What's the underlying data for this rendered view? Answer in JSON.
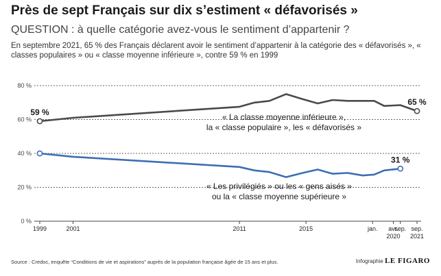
{
  "header": {
    "title": "Près de sept Français sur dix s’estiment « défavorisés »",
    "question": "QUESTION : à quelle catégorie avez-vous le sentiment d’appartenir ?",
    "intro": "En septembre 2021, 65 % des Français déclarent avoir le sentiment d’appartenir à la catégorie des « défavorisés », « classes populaires » ou « classe moyenne inférieure », contre 59 % en 1999"
  },
  "footer": {
    "source": "Source : Credoc, enquête “Conditions de vie et aspirations” auprès de la population française âgée de 15 ans et plus.",
    "credit_prefix": "Infographie",
    "credit_brand": "LE FIGARO"
  },
  "chart_data": {
    "type": "line",
    "ylim": [
      0,
      80
    ],
    "y_ticks": [
      0,
      20,
      40,
      60,
      80
    ],
    "y_tick_labels": [
      "0 %",
      "20 %",
      "40 %",
      "60 %",
      "80 %"
    ],
    "x_range": [
      1999,
      2021.67
    ],
    "x_tick_positions": [
      1999,
      2001,
      2011,
      2015,
      2019.0,
      2020.25,
      2020.67,
      2021.67
    ],
    "x_tick_labels": [
      {
        "lines": [
          "1999"
        ]
      },
      {
        "lines": [
          "2001"
        ]
      },
      {
        "lines": [
          "2011"
        ]
      },
      {
        "lines": [
          "2015"
        ]
      },
      {
        "lines": [
          "jan."
        ]
      },
      {
        "lines": [
          "avr.",
          "2020"
        ]
      },
      {
        "lines": [
          "sep."
        ]
      },
      {
        "lines": [
          "sep.",
          "2021"
        ]
      }
    ],
    "grid": true,
    "series": [
      {
        "name": "« La classe moyenne inférieure », la « classe populaire », les « défavorisés »",
        "name_lines": [
          "« La classe moyenne inférieure »,",
          "la « classe populaire », les « défavorisés »"
        ],
        "color": "#4a4a4a",
        "x": [
          1999,
          2001,
          2011,
          2011.9,
          2012.8,
          2013.8,
          2014.8,
          2015.7,
          2016.6,
          2017.5,
          2018.4,
          2019.1,
          2019.7,
          2020.67,
          2021.67
        ],
        "values": [
          59,
          61,
          67.5,
          70,
          71,
          75,
          72,
          69.5,
          71.5,
          71,
          71,
          71,
          68,
          68.5,
          65
        ],
        "labels": [
          {
            "x": 1999,
            "text": "59 %"
          },
          {
            "x": 2021.67,
            "text": "65 %"
          }
        ]
      },
      {
        "name": "« Les privilégiés » ou les « gens aisés » ou la « classe moyenne supérieure »",
        "name_lines": [
          "« Les privilégiés » ou les « gens aisés »",
          "ou la « classe moyenne supérieure »"
        ],
        "color": "#3d6eb4",
        "x": [
          1999,
          2001,
          2011,
          2011.9,
          2012.8,
          2013.8,
          2014.8,
          2015.7,
          2016.6,
          2017.5,
          2018.4,
          2019.1,
          2019.7,
          2020.67
        ],
        "values": [
          40,
          38,
          32,
          30,
          29,
          26,
          28.5,
          30.5,
          28,
          28.5,
          27,
          27.5,
          30,
          31
        ],
        "labels": [
          {
            "x": 2020.67,
            "text": "31 %"
          }
        ]
      }
    ]
  }
}
